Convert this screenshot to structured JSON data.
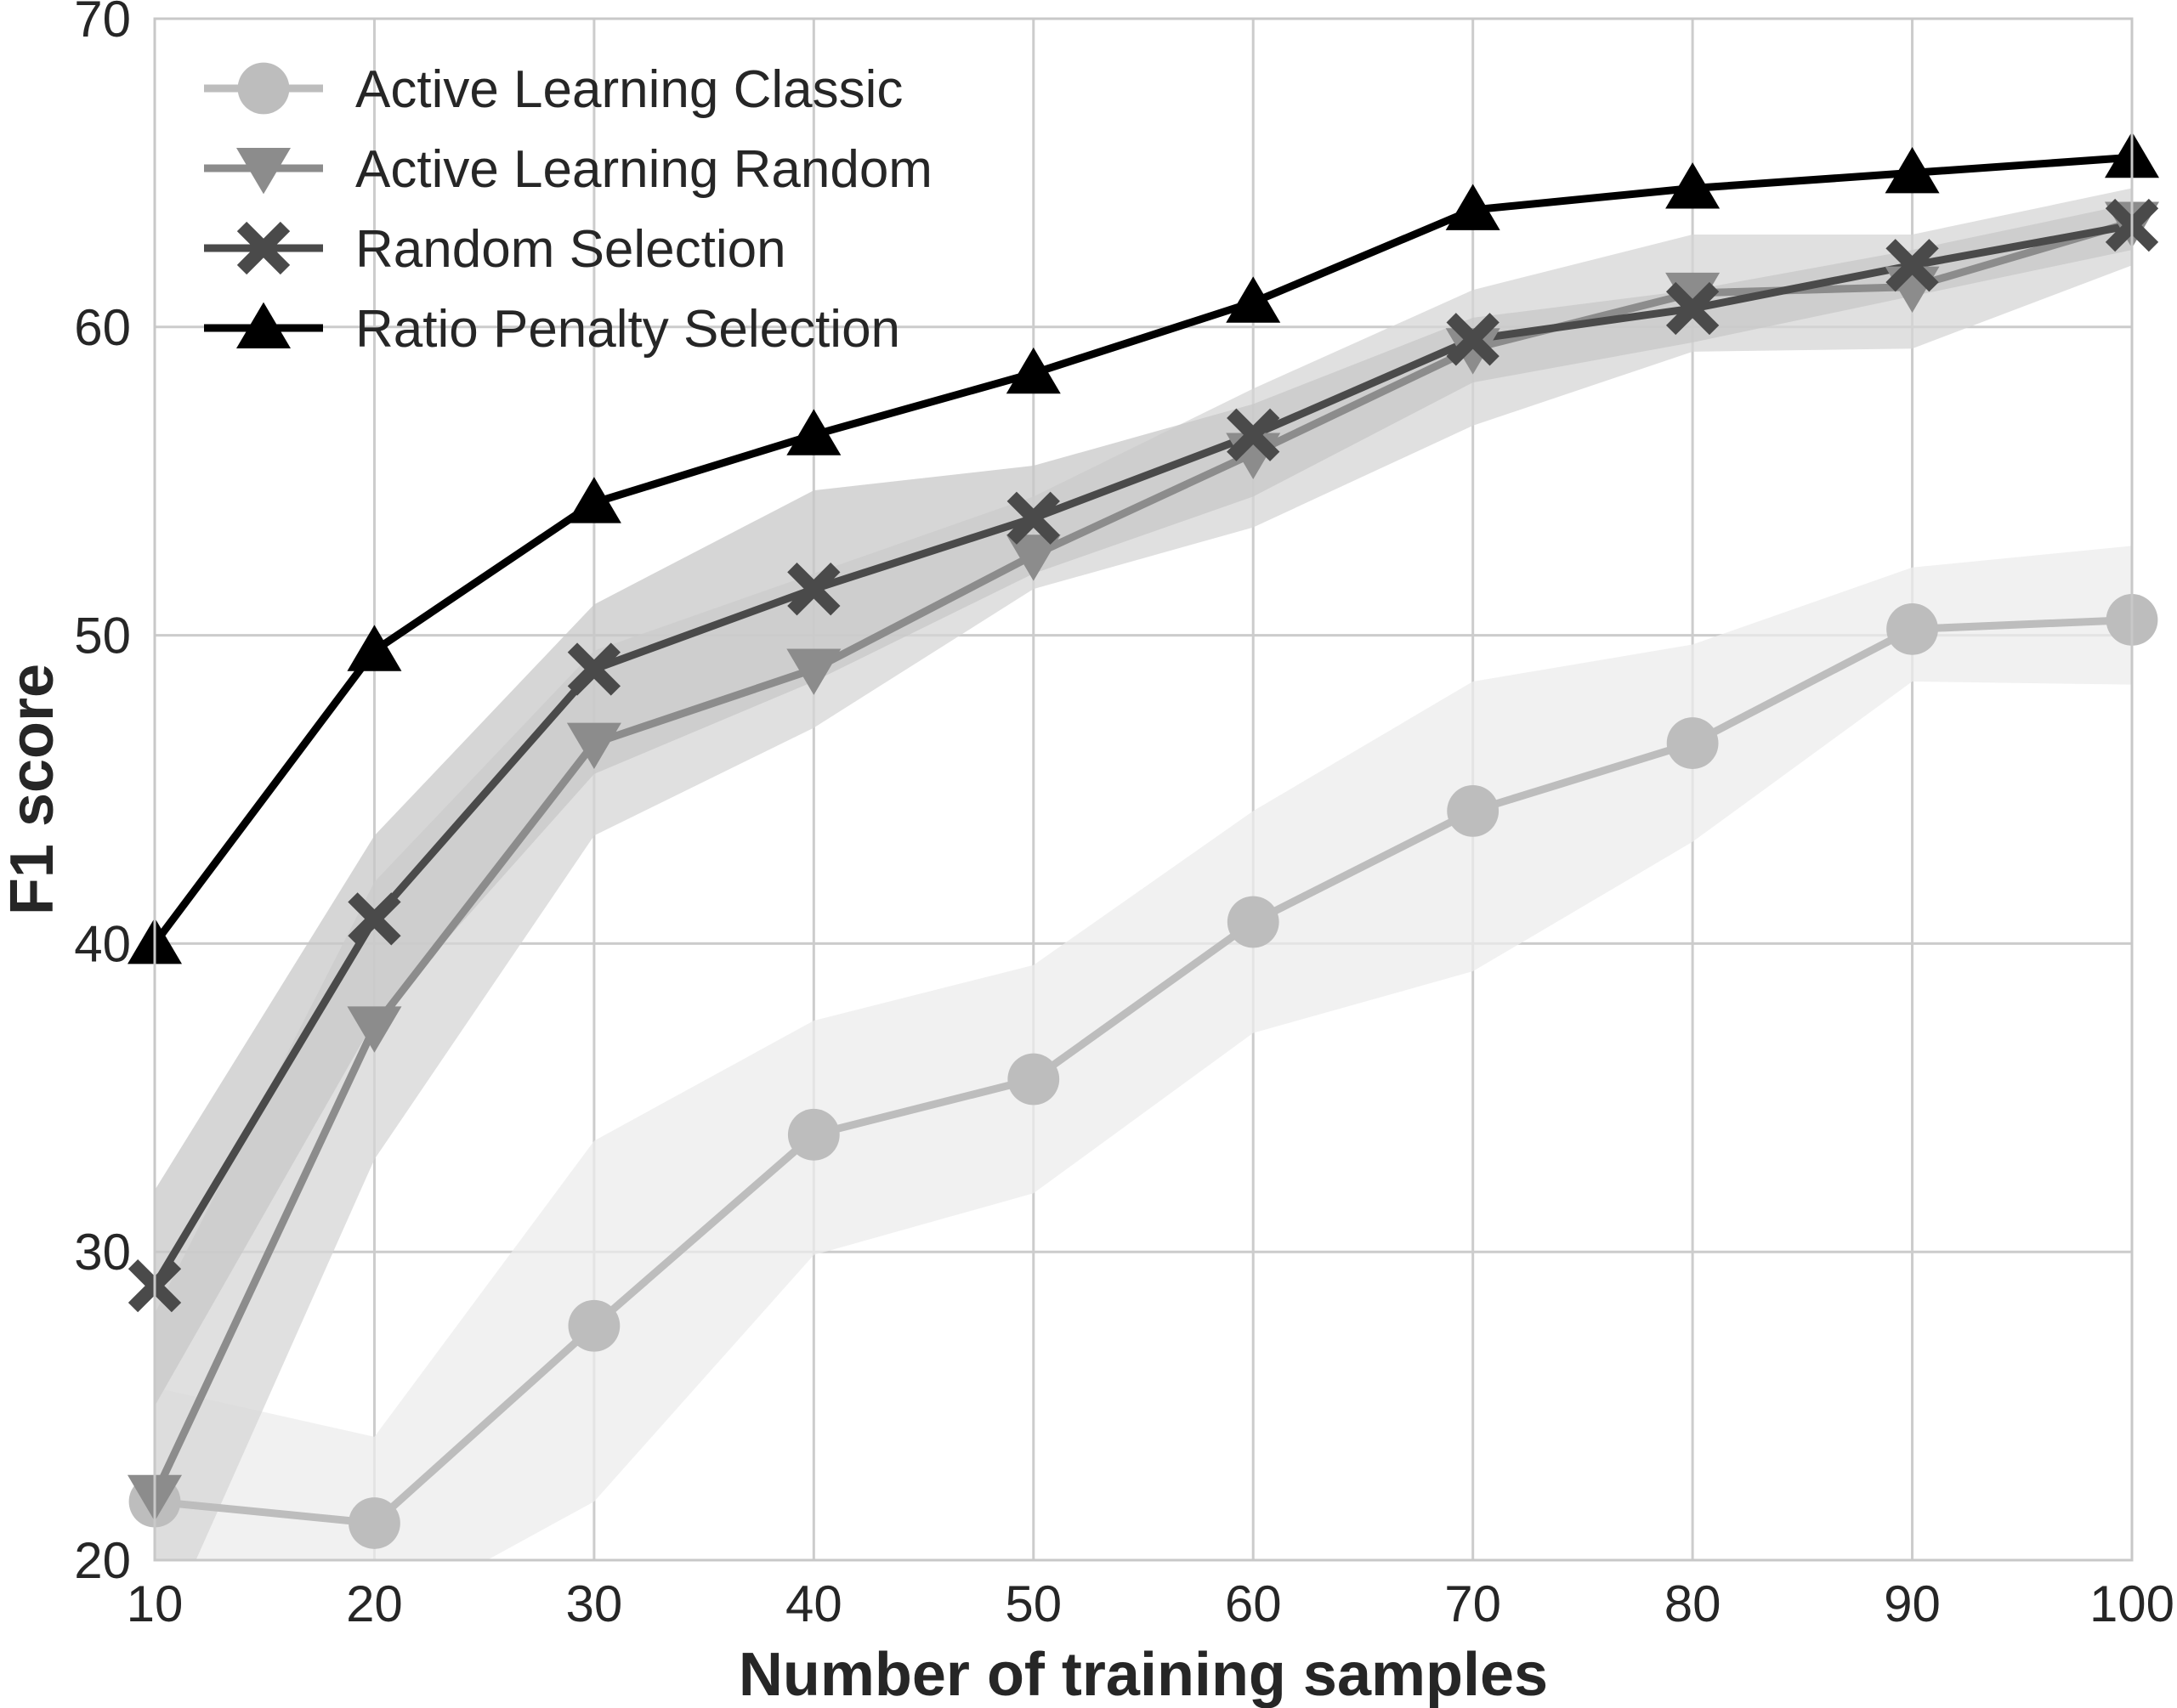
{
  "chart_data": {
    "type": "line",
    "title": "",
    "xlabel": "Number of training samples",
    "ylabel": "F1 score",
    "xlim": [
      10,
      100
    ],
    "ylim": [
      20,
      70
    ],
    "xticks": [
      10,
      20,
      30,
      40,
      50,
      60,
      70,
      80,
      90,
      100
    ],
    "yticks": [
      20,
      30,
      40,
      50,
      60,
      70
    ],
    "x": [
      10,
      20,
      30,
      40,
      50,
      60,
      70,
      80,
      90,
      100
    ],
    "grid": true,
    "legend_position": "top-left",
    "series": [
      {
        "name": "Active Learning Classic",
        "marker": "circle",
        "color": "#bdbdbd",
        "band_color": "#ececec",
        "values": [
          21.9,
          21.2,
          27.6,
          33.8,
          35.6,
          40.7,
          44.3,
          46.5,
          50.2,
          50.5
        ],
        "band_low": [
          20.0,
          18.0,
          21.9,
          29.9,
          31.9,
          37.1,
          39.1,
          43.3,
          48.5,
          48.4
        ],
        "band_high": [
          25.6,
          24.0,
          33.6,
          37.5,
          39.3,
          44.3,
          48.5,
          49.7,
          52.2,
          52.9
        ]
      },
      {
        "name": "Active Learning Random",
        "marker": "triangle-down",
        "color": "#8c8c8c",
        "band_color": "#d6d6d6",
        "values": [
          22.1,
          37.3,
          46.5,
          48.9,
          52.6,
          55.9,
          59.3,
          61.1,
          61.3,
          63.4
        ],
        "band_low": [
          17.0,
          33.0,
          43.5,
          47.0,
          51.5,
          53.5,
          56.8,
          59.2,
          59.3,
          62.0
        ],
        "band_high": [
          28.0,
          42.0,
          49.5,
          52.0,
          54.5,
          58.0,
          61.2,
          63.0,
          63.0,
          64.5
        ]
      },
      {
        "name": "Random Selection",
        "marker": "x",
        "color": "#4a4a4a",
        "band_color": "#c8c8c8",
        "values": [
          28.9,
          40.8,
          48.9,
          51.5,
          53.8,
          56.5,
          59.6,
          60.6,
          62.0,
          63.3
        ],
        "band_low": [
          25.0,
          37.5,
          45.5,
          48.5,
          52.0,
          54.5,
          58.2,
          59.5,
          61.0,
          62.5
        ],
        "band_high": [
          32.0,
          43.5,
          51.0,
          54.7,
          55.5,
          57.5,
          60.3,
          61.2,
          62.5,
          64.0
        ]
      },
      {
        "name": "Ratio Penalty Selection",
        "marker": "triangle-up",
        "color": "#000000",
        "values": [
          40.0,
          49.5,
          54.3,
          56.5,
          58.5,
          60.8,
          63.8,
          64.5,
          65.0,
          65.5
        ]
      }
    ]
  }
}
